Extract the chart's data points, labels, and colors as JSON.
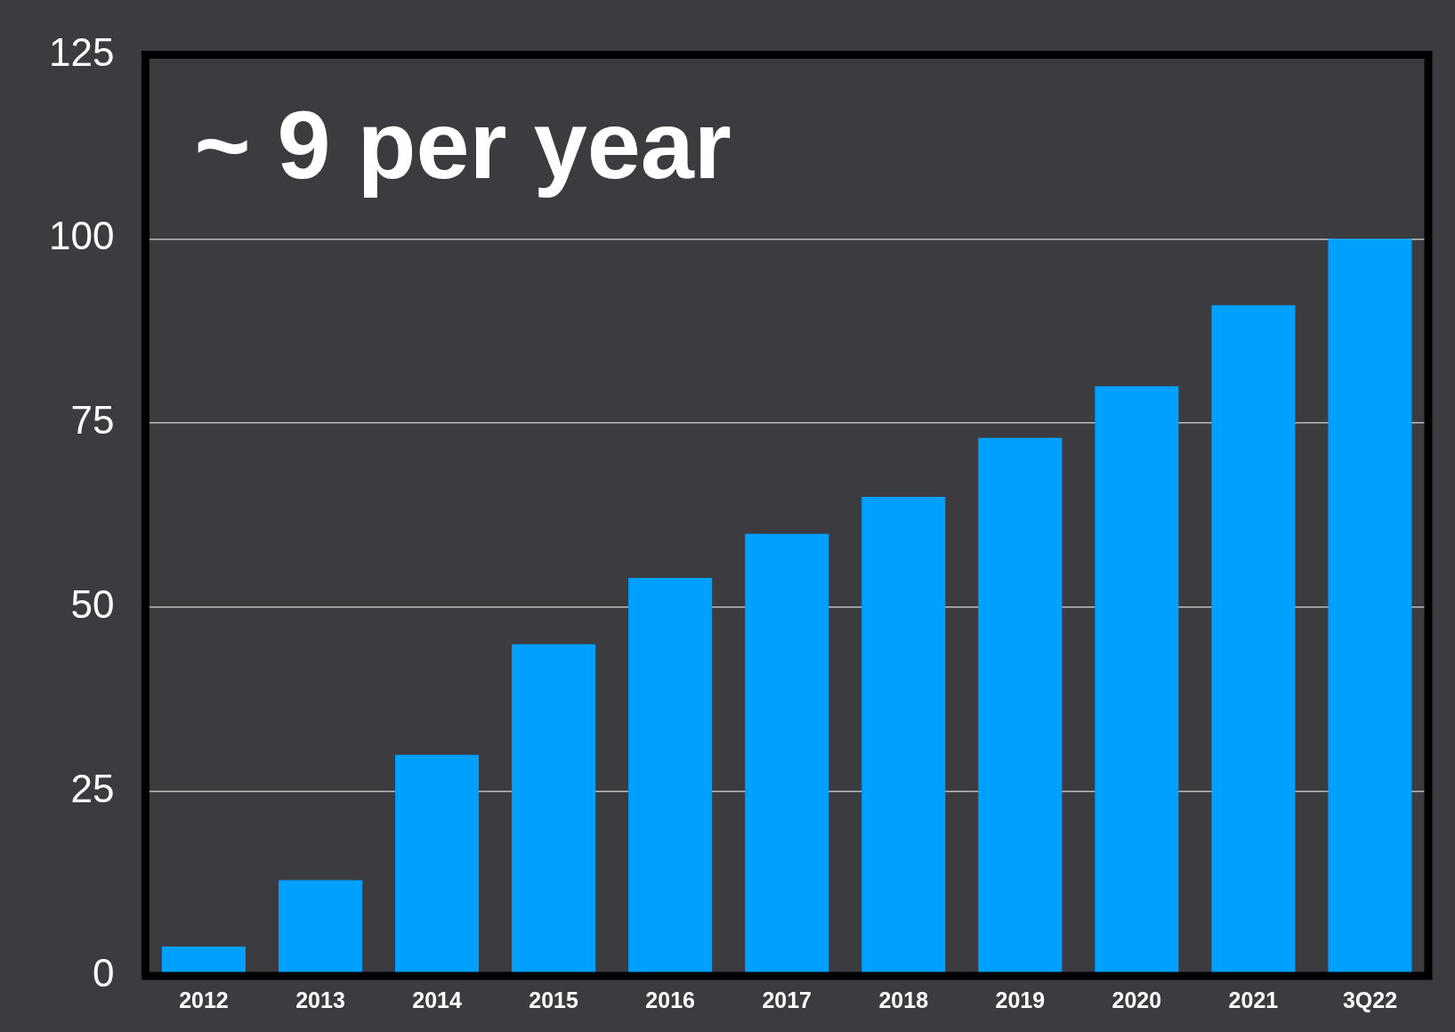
{
  "chart_data": {
    "type": "bar",
    "categories": [
      "2012",
      "2013",
      "2014",
      "2015",
      "2016",
      "2017",
      "2018",
      "2019",
      "2020",
      "2021",
      "3Q22"
    ],
    "values": [
      4,
      13,
      30,
      45,
      54,
      60,
      65,
      73,
      80,
      91,
      100
    ],
    "color": "#00a0ff",
    "ylim": [
      0,
      125
    ],
    "yticks": [
      0,
      25,
      50,
      75,
      100,
      125
    ],
    "grid": "y",
    "legend": false,
    "annotations": [
      "~ 9 per year"
    ]
  }
}
